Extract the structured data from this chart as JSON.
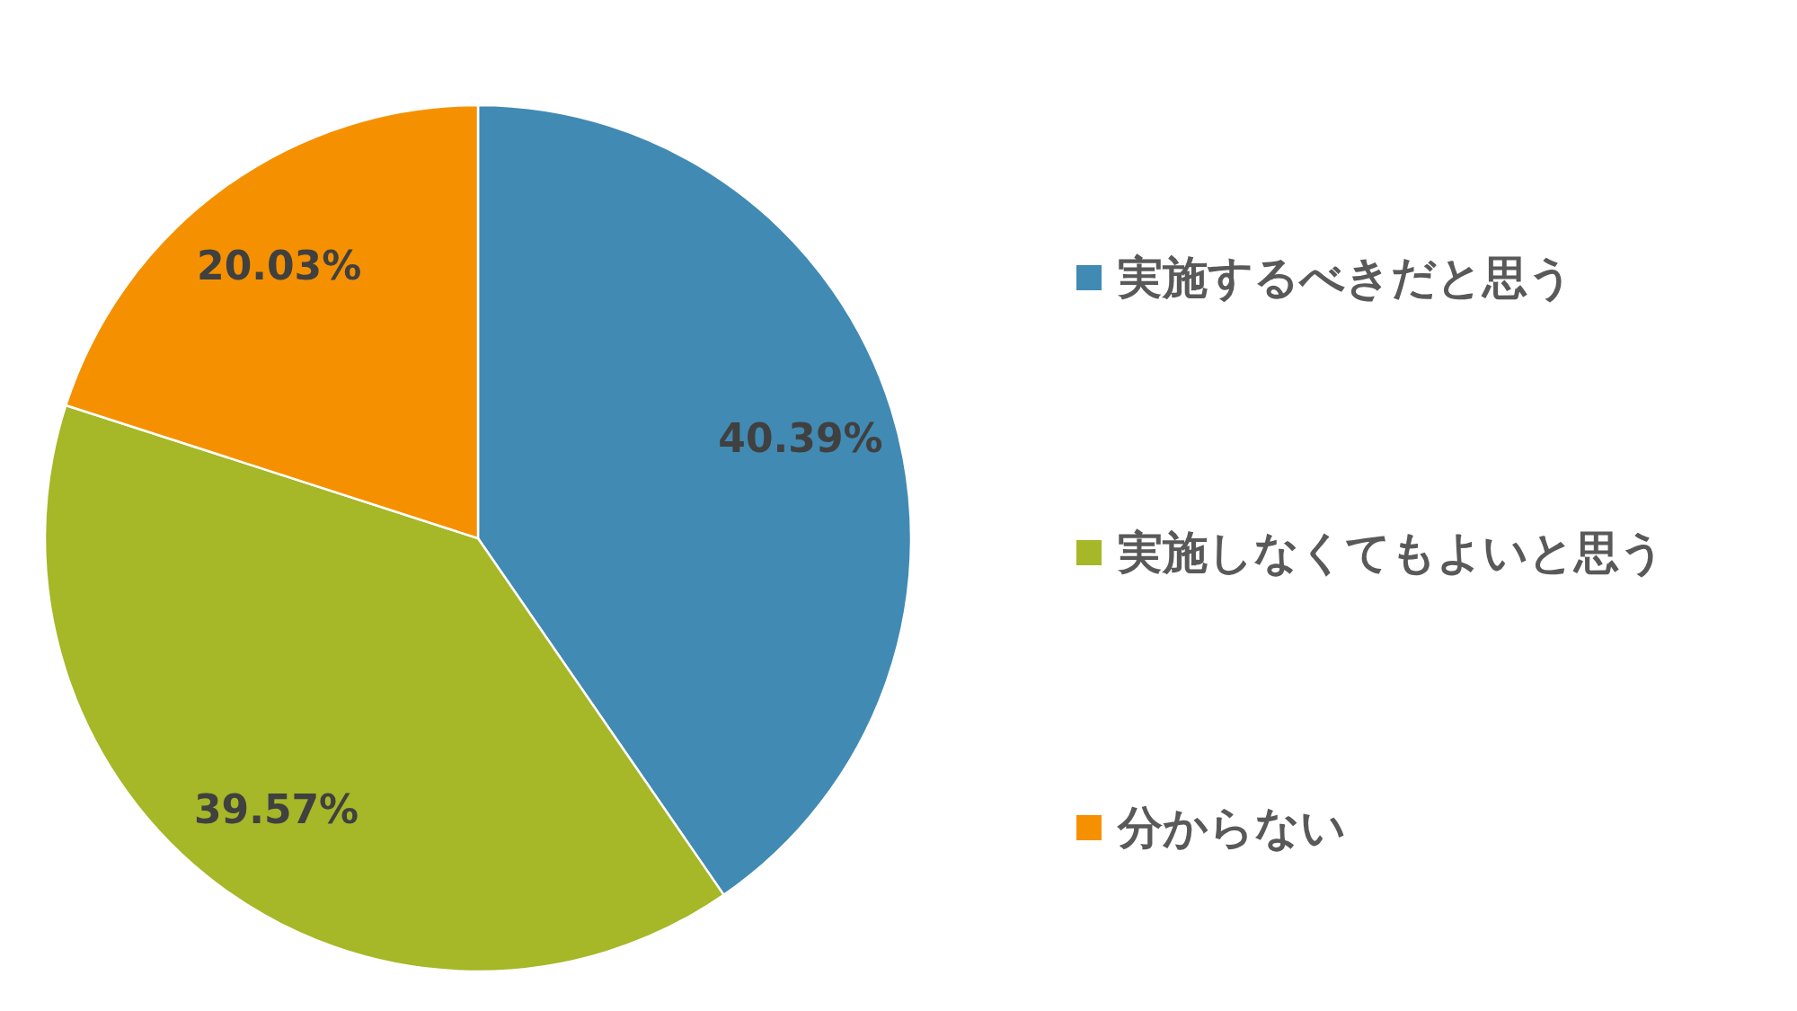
{
  "chart_data": {
    "type": "pie",
    "categories": [
      "実施するべきだと思う",
      "実施しなくてもよいと思う",
      "分からない"
    ],
    "values": [
      40.39,
      39.57,
      20.03
    ],
    "value_labels": [
      "40.39%",
      "39.57%",
      "20.03%"
    ],
    "colors": [
      "#418ab3",
      "#a6b727",
      "#f59101"
    ],
    "legend": "right"
  }
}
